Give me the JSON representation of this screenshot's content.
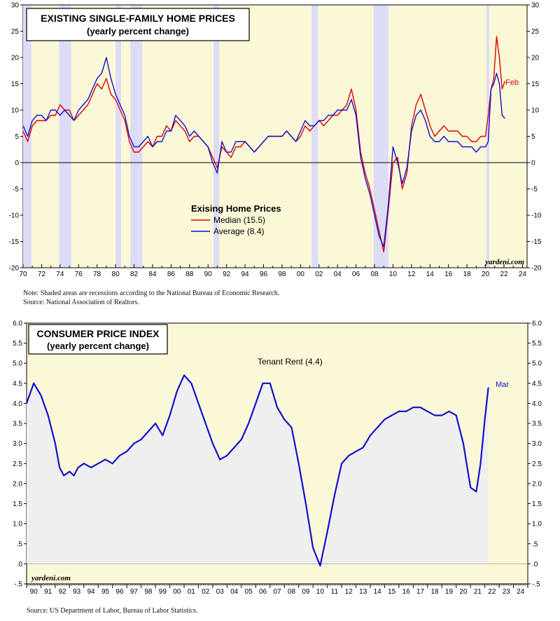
{
  "charts": [
    {
      "title": "EXISTING SINGLE-FAMILY HOME PRICES",
      "subtitle": "(yearly percent change)",
      "legend": {
        "title": "Exising Home Prices",
        "median": "Median (15.5)",
        "average": "Average (8.4)"
      },
      "end_label": "Feb",
      "watermark": "yardeni.com"
    },
    {
      "title": "CONSUMER PRICE INDEX",
      "subtitle": "(yearly percent change)",
      "series_label": "Tenant Rent (4.4)",
      "end_label": "Mar",
      "watermark": "yardeni.com"
    }
  ],
  "notes": {
    "top_note": "Note: Shaded areas are recessions according to the National Bureau of Economic Research.",
    "top_source": "Source: National Association of Realtors.",
    "bottom_source": "Source: US Department of Labor, Bureau of Labor Statistics."
  },
  "colors": {
    "panel": "#fbf8d8",
    "recession": "#dcdcf6",
    "median": "#e00000",
    "average": "#1010d0",
    "area": "#efefef"
  },
  "chart_data": [
    {
      "type": "line",
      "title": "EXISTING SINGLE-FAMILY HOME PRICES",
      "subtitle": "(yearly percent change)",
      "ylim": [
        -20,
        30
      ],
      "xlim": [
        1970,
        2024.5
      ],
      "yticks": [
        -20,
        -15,
        -10,
        -5,
        0,
        5,
        10,
        15,
        20,
        25,
        30
      ],
      "xtick_labels": [
        "70",
        "72",
        "74",
        "76",
        "78",
        "80",
        "82",
        "84",
        "86",
        "88",
        "90",
        "92",
        "94",
        "96",
        "98",
        "00",
        "02",
        "04",
        "06",
        "08",
        "10",
        "12",
        "14",
        "16",
        "18",
        "20",
        "22",
        "24"
      ],
      "recessions": [
        [
          1970.0,
          1970.9
        ],
        [
          1973.9,
          1975.2
        ],
        [
          1980.0,
          1980.6
        ],
        [
          1981.6,
          1982.9
        ],
        [
          1990.6,
          1991.2
        ],
        [
          2001.2,
          2001.9
        ],
        [
          2007.9,
          2009.5
        ],
        [
          2020.1,
          2020.4
        ]
      ],
      "series": [
        {
          "name": "Median (15.5)",
          "color": "#e00000",
          "x": [
            1970.0,
            1970.5,
            1971.0,
            1971.5,
            1972.0,
            1972.5,
            1973.0,
            1973.5,
            1974.0,
            1974.5,
            1975.0,
            1975.5,
            1976.0,
            1976.5,
            1977.0,
            1977.5,
            1978.0,
            1978.5,
            1979.0,
            1979.5,
            1980.0,
            1980.5,
            1981.0,
            1981.5,
            1982.0,
            1982.5,
            1983.0,
            1983.5,
            1984.0,
            1984.5,
            1985.0,
            1985.5,
            1986.0,
            1986.5,
            1987.0,
            1987.5,
            1988.0,
            1988.5,
            1989.0,
            1989.5,
            1990.0,
            1990.5,
            1991.0,
            1991.5,
            1992.0,
            1992.5,
            1993.0,
            1993.5,
            1994.0,
            1994.5,
            1995.0,
            1995.5,
            1996.0,
            1996.5,
            1997.0,
            1997.5,
            1998.0,
            1998.5,
            1999.0,
            1999.5,
            2000.0,
            2000.5,
            2001.0,
            2001.5,
            2002.0,
            2002.5,
            2003.0,
            2003.5,
            2004.0,
            2004.5,
            2005.0,
            2005.5,
            2006.0,
            2006.5,
            2007.0,
            2007.5,
            2008.0,
            2008.5,
            2009.0,
            2009.5,
            2010.0,
            2010.5,
            2011.0,
            2011.5,
            2012.0,
            2012.5,
            2013.0,
            2013.5,
            2014.0,
            2014.5,
            2015.0,
            2015.5,
            2016.0,
            2016.5,
            2017.0,
            2017.5,
            2018.0,
            2018.5,
            2019.0,
            2019.5,
            2020.0,
            2020.3,
            2020.6,
            2020.9,
            2021.2,
            2021.5,
            2021.8,
            2022.1
          ],
          "values": [
            6,
            4,
            7,
            8,
            8,
            8,
            9,
            9,
            11,
            10,
            10,
            8,
            9,
            10,
            11,
            13,
            15,
            14,
            16,
            13,
            12,
            10,
            8,
            4,
            2,
            2,
            3,
            4,
            3,
            5,
            5,
            7,
            6,
            8,
            7,
            6,
            4,
            5,
            5,
            4,
            3,
            1,
            -1,
            3,
            2,
            1,
            3,
            3,
            4,
            3,
            2,
            3,
            4,
            5,
            5,
            5,
            5,
            6,
            5,
            4,
            5,
            7,
            6,
            7,
            8,
            7,
            8,
            9,
            9,
            10,
            11,
            14,
            10,
            2,
            -2,
            -5,
            -9,
            -13,
            -17,
            -9,
            0,
            1,
            -5,
            -2,
            7,
            11,
            13,
            10,
            7,
            5,
            6,
            7,
            6,
            6,
            6,
            5,
            5,
            4,
            4,
            5,
            5,
            9,
            14,
            16,
            24,
            20,
            14,
            15.5
          ]
        },
        {
          "name": "Average (8.4)",
          "color": "#1010d0",
          "x": [
            1970.0,
            1970.5,
            1971.0,
            1971.5,
            1972.0,
            1972.5,
            1973.0,
            1973.5,
            1974.0,
            1974.5,
            1975.0,
            1975.5,
            1976.0,
            1976.5,
            1977.0,
            1977.5,
            1978.0,
            1978.5,
            1979.0,
            1979.5,
            1980.0,
            1980.5,
            1981.0,
            1981.5,
            1982.0,
            1982.5,
            1983.0,
            1983.5,
            1984.0,
            1984.5,
            1985.0,
            1985.5,
            1986.0,
            1986.5,
            1987.0,
            1987.5,
            1988.0,
            1988.5,
            1989.0,
            1989.5,
            1990.0,
            1990.5,
            1991.0,
            1991.5,
            1992.0,
            1992.5,
            1993.0,
            1993.5,
            1994.0,
            1994.5,
            1995.0,
            1995.5,
            1996.0,
            1996.5,
            1997.0,
            1997.5,
            1998.0,
            1998.5,
            1999.0,
            1999.5,
            2000.0,
            2000.5,
            2001.0,
            2001.5,
            2002.0,
            2002.5,
            2003.0,
            2003.5,
            2004.0,
            2004.5,
            2005.0,
            2005.5,
            2006.0,
            2006.5,
            2007.0,
            2007.5,
            2008.0,
            2008.5,
            2009.0,
            2009.5,
            2010.0,
            2010.5,
            2011.0,
            2011.5,
            2012.0,
            2012.5,
            2013.0,
            2013.5,
            2014.0,
            2014.5,
            2015.0,
            2015.5,
            2016.0,
            2016.5,
            2017.0,
            2017.5,
            2018.0,
            2018.5,
            2019.0,
            2019.5,
            2020.0,
            2020.3,
            2020.6,
            2020.9,
            2021.2,
            2021.5,
            2021.8,
            2022.1
          ],
          "values": [
            7,
            5,
            8,
            9,
            9,
            8,
            10,
            10,
            9,
            10,
            9,
            8,
            10,
            11,
            12,
            14,
            16,
            17,
            20,
            16,
            13,
            11,
            9,
            5,
            3,
            3,
            4,
            5,
            3,
            4,
            4,
            6,
            6,
            9,
            8,
            7,
            5,
            6,
            5,
            4,
            3,
            0,
            -2,
            4,
            2,
            2,
            4,
            4,
            4,
            3,
            2,
            3,
            4,
            5,
            5,
            5,
            5,
            6,
            5,
            4,
            6,
            8,
            7,
            7,
            8,
            8,
            9,
            9,
            10,
            10,
            10,
            12,
            9,
            1,
            -3,
            -6,
            -10,
            -14,
            -16,
            -8,
            3,
            0,
            -4,
            -1,
            6,
            9,
            10,
            8,
            5,
            4,
            4,
            5,
            4,
            4,
            4,
            3,
            3,
            3,
            2,
            3,
            3,
            4,
            14,
            15,
            17,
            15,
            9,
            8.4
          ]
        }
      ]
    },
    {
      "type": "area",
      "title": "CONSUMER PRICE INDEX",
      "subtitle": "(yearly percent change)",
      "ylim": [
        -0.5,
        6.0
      ],
      "xlim": [
        1990,
        2025
      ],
      "ytick_labels": [
        "-.5",
        ".0",
        ".5",
        "1.0",
        "1.5",
        "2.0",
        "2.5",
        "3.0",
        "3.5",
        "4.0",
        "4.5",
        "5.0",
        "5.5",
        "6.0"
      ],
      "yticks": [
        -0.5,
        0,
        0.5,
        1.0,
        1.5,
        2.0,
        2.5,
        3.0,
        3.5,
        4.0,
        4.5,
        5.0,
        5.5,
        6.0
      ],
      "xtick_labels": [
        "90",
        "91",
        "92",
        "93",
        "94",
        "95",
        "96",
        "97",
        "98",
        "99",
        "00",
        "01",
        "02",
        "03",
        "04",
        "05",
        "06",
        "07",
        "08",
        "09",
        "10",
        "11",
        "12",
        "13",
        "14",
        "15",
        "16",
        "17",
        "18",
        "19",
        "20",
        "21",
        "22",
        "23",
        "24"
      ],
      "series": [
        {
          "name": "Tenant Rent (4.4)",
          "color": "#1010d0",
          "x": [
            1990.0,
            1990.5,
            1991.0,
            1991.5,
            1992.0,
            1992.3,
            1992.6,
            1993.0,
            1993.3,
            1993.6,
            1994.0,
            1994.5,
            1995.0,
            1995.5,
            1996.0,
            1996.5,
            1997.0,
            1997.5,
            1998.0,
            1998.5,
            1999.0,
            1999.5,
            2000.0,
            2000.5,
            2001.0,
            2001.5,
            2002.0,
            2002.5,
            2003.0,
            2003.5,
            2004.0,
            2004.5,
            2005.0,
            2005.5,
            2006.0,
            2006.5,
            2007.0,
            2007.5,
            2008.0,
            2008.5,
            2009.0,
            2009.5,
            2010.0,
            2010.5,
            2011.0,
            2011.5,
            2012.0,
            2012.5,
            2013.0,
            2013.5,
            2014.0,
            2014.5,
            2015.0,
            2015.5,
            2016.0,
            2016.5,
            2017.0,
            2017.5,
            2018.0,
            2018.5,
            2019.0,
            2019.5,
            2020.0,
            2020.5,
            2021.0,
            2021.4,
            2021.7,
            2022.0,
            2022.25
          ],
          "values": [
            4.0,
            4.5,
            4.2,
            3.7,
            3.0,
            2.4,
            2.2,
            2.3,
            2.2,
            2.4,
            2.5,
            2.4,
            2.5,
            2.6,
            2.5,
            2.7,
            2.8,
            3.0,
            3.1,
            3.3,
            3.5,
            3.2,
            3.7,
            4.3,
            4.7,
            4.5,
            4.0,
            3.5,
            3.0,
            2.6,
            2.7,
            2.9,
            3.1,
            3.5,
            4.0,
            4.5,
            4.5,
            3.9,
            3.6,
            3.4,
            2.5,
            1.5,
            0.4,
            -0.05,
            0.8,
            1.7,
            2.5,
            2.7,
            2.8,
            2.9,
            3.2,
            3.4,
            3.6,
            3.7,
            3.8,
            3.8,
            3.9,
            3.9,
            3.8,
            3.7,
            3.7,
            3.8,
            3.7,
            3.0,
            1.9,
            1.8,
            2.5,
            3.6,
            4.4
          ]
        }
      ]
    }
  ]
}
